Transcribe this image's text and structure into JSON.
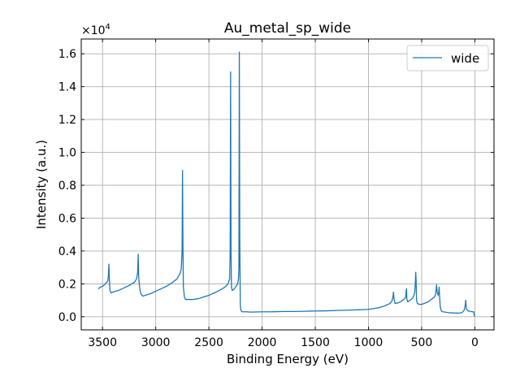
{
  "chart_data": {
    "type": "line",
    "title": "Au_metal_sp_wide",
    "xlabel": "Binding Energy (eV)",
    "ylabel": "Intensity (a.u.)",
    "y_scale_prefix": "×10",
    "y_scale_exponent": "4",
    "xlim": [
      3700,
      -180
    ],
    "ylim": [
      -800,
      16900
    ],
    "x_ticks": [
      3500,
      3000,
      2500,
      2000,
      1500,
      1000,
      500,
      0
    ],
    "x_tick_labels": [
      "3500",
      "3000",
      "2500",
      "2000",
      "1500",
      "1000",
      "500",
      "0"
    ],
    "y_ticks": [
      0,
      2000,
      4000,
      6000,
      8000,
      10000,
      12000,
      14000,
      16000
    ],
    "y_tick_labels": [
      "0.0",
      "0.2",
      "0.4",
      "0.6",
      "0.8",
      "1.0",
      "1.2",
      "1.4",
      "1.6"
    ],
    "grid": true,
    "legend_position": "top-right",
    "series": [
      {
        "name": "wide",
        "color": "#1f77b4",
        "points": [
          [
            3540,
            1700
          ],
          [
            3520,
            1800
          ],
          [
            3500,
            1850
          ],
          [
            3480,
            1950
          ],
          [
            3460,
            2100
          ],
          [
            3450,
            2200
          ],
          [
            3445,
            2500
          ],
          [
            3440,
            3200
          ],
          [
            3435,
            2100
          ],
          [
            3430,
            1600
          ],
          [
            3420,
            1450
          ],
          [
            3400,
            1500
          ],
          [
            3380,
            1550
          ],
          [
            3350,
            1600
          ],
          [
            3300,
            1750
          ],
          [
            3250,
            1900
          ],
          [
            3200,
            2100
          ],
          [
            3180,
            2300
          ],
          [
            3170,
            2700
          ],
          [
            3165,
            3800
          ],
          [
            3160,
            2400
          ],
          [
            3150,
            1700
          ],
          [
            3140,
            1400
          ],
          [
            3120,
            1250
          ],
          [
            3100,
            1300
          ],
          [
            3050,
            1400
          ],
          [
            3000,
            1550
          ],
          [
            2950,
            1700
          ],
          [
            2900,
            1850
          ],
          [
            2850,
            2050
          ],
          [
            2800,
            2300
          ],
          [
            2770,
            2650
          ],
          [
            2760,
            2900
          ],
          [
            2752,
            4000
          ],
          [
            2748,
            8900
          ],
          [
            2744,
            4500
          ],
          [
            2740,
            1800
          ],
          [
            2730,
            1200
          ],
          [
            2720,
            1050
          ],
          [
            2700,
            1050
          ],
          [
            2650,
            1050
          ],
          [
            2600,
            1100
          ],
          [
            2550,
            1200
          ],
          [
            2500,
            1300
          ],
          [
            2450,
            1450
          ],
          [
            2400,
            1600
          ],
          [
            2350,
            1800
          ],
          [
            2320,
            2000
          ],
          [
            2305,
            2300
          ],
          [
            2300,
            4000
          ],
          [
            2296,
            14900
          ],
          [
            2292,
            4000
          ],
          [
            2288,
            1800
          ],
          [
            2280,
            1600
          ],
          [
            2260,
            1700
          ],
          [
            2240,
            1900
          ],
          [
            2230,
            2000
          ],
          [
            2222,
            2300
          ],
          [
            2218,
            3000
          ],
          [
            2214,
            16100
          ],
          [
            2210,
            5000
          ],
          [
            2205,
            800
          ],
          [
            2200,
            400
          ],
          [
            2190,
            300
          ],
          [
            2150,
            300
          ],
          [
            2100,
            280
          ],
          [
            2000,
            300
          ],
          [
            1900,
            300
          ],
          [
            1800,
            320
          ],
          [
            1700,
            320
          ],
          [
            1600,
            330
          ],
          [
            1500,
            350
          ],
          [
            1400,
            360
          ],
          [
            1300,
            380
          ],
          [
            1200,
            400
          ],
          [
            1100,
            420
          ],
          [
            1000,
            450
          ],
          [
            950,
            500
          ],
          [
            900,
            550
          ],
          [
            850,
            650
          ],
          [
            800,
            800
          ],
          [
            780,
            950
          ],
          [
            770,
            1200
          ],
          [
            765,
            1500
          ],
          [
            760,
            1100
          ],
          [
            750,
            800
          ],
          [
            720,
            850
          ],
          [
            700,
            900
          ],
          [
            680,
            1000
          ],
          [
            660,
            1100
          ],
          [
            650,
            1200
          ],
          [
            645,
            1600
          ],
          [
            642,
            1700
          ],
          [
            640,
            1100
          ],
          [
            630,
            900
          ],
          [
            610,
            1000
          ],
          [
            590,
            1100
          ],
          [
            575,
            1250
          ],
          [
            565,
            1500
          ],
          [
            560,
            2000
          ],
          [
            556,
            2700
          ],
          [
            552,
            2200
          ],
          [
            548,
            1000
          ],
          [
            540,
            800
          ],
          [
            520,
            750
          ],
          [
            500,
            750
          ],
          [
            480,
            800
          ],
          [
            460,
            850
          ],
          [
            440,
            900
          ],
          [
            420,
            1000
          ],
          [
            400,
            1100
          ],
          [
            380,
            1200
          ],
          [
            370,
            1350
          ],
          [
            365,
            1600
          ],
          [
            360,
            1950
          ],
          [
            355,
            1500
          ],
          [
            345,
            1300
          ],
          [
            340,
            1500
          ],
          [
            336,
            1800
          ],
          [
            332,
            1300
          ],
          [
            325,
            600
          ],
          [
            315,
            350
          ],
          [
            300,
            300
          ],
          [
            250,
            250
          ],
          [
            200,
            230
          ],
          [
            150,
            220
          ],
          [
            120,
            250
          ],
          [
            100,
            400
          ],
          [
            90,
            700
          ],
          [
            86,
            1000
          ],
          [
            83,
            800
          ],
          [
            80,
            500
          ],
          [
            70,
            400
          ],
          [
            60,
            350
          ],
          [
            40,
            320
          ],
          [
            20,
            300
          ],
          [
            10,
            300
          ],
          [
            5,
            50
          ],
          [
            0,
            30
          ]
        ]
      }
    ]
  }
}
